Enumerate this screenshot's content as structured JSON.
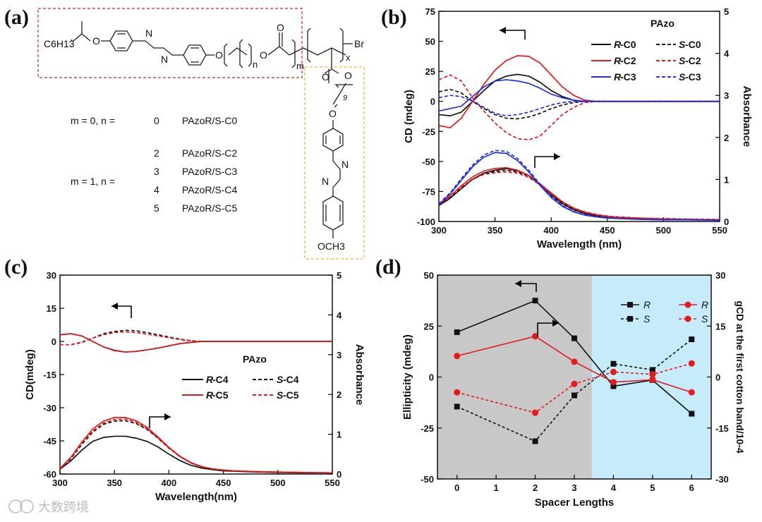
{
  "panels": {
    "a": {
      "label": "(a)",
      "chem": {
        "tail": "C6H13",
        "star": "*",
        "oxygen": "O",
        "azo_n": "N",
        "idx_n": "n",
        "idx_m": "m",
        "idx_x": "x",
        "idx_9": "9",
        "br": "Br",
        "och3": "OCH3"
      },
      "compounds": [
        {
          "group": "m = 0,   n =",
          "n": "0",
          "name": "PAzoR/S-C0"
        },
        {
          "group": "m = 1,   n =",
          "n": "2",
          "name": "PAzoR/S-C2"
        },
        {
          "group": "",
          "n": "3",
          "name": "PAzoR/S-C3"
        },
        {
          "group": "",
          "n": "4",
          "name": "PAzoR/S-C4"
        },
        {
          "group": "",
          "n": "5",
          "name": "PAzoR/S-C5"
        }
      ]
    },
    "b": {
      "label": "(b)"
    },
    "c": {
      "label": "(c)"
    },
    "d": {
      "label": "(d)"
    }
  },
  "watermark": "大数跨境",
  "chart_data": [
    {
      "id": "b",
      "type": "line",
      "title": "PAzo",
      "xlabel": "Wavelength (nm)",
      "ylabel": "CD (mdeg)",
      "y2label": "Absorbance",
      "xlim": [
        300,
        550
      ],
      "ylim": [
        -100,
        75
      ],
      "y2lim": [
        0,
        5
      ],
      "xticks": [
        300,
        350,
        400,
        450,
        500,
        550
      ],
      "yticks": [
        75,
        50,
        25,
        0,
        -25,
        -50,
        -75,
        -100
      ],
      "y2ticks": [
        5,
        4,
        3,
        2,
        1,
        0
      ],
      "x": [
        300,
        310,
        320,
        330,
        340,
        350,
        360,
        370,
        380,
        390,
        400,
        410,
        420,
        430,
        440,
        450,
        460,
        480,
        500,
        520,
        550
      ],
      "cd_series": [
        {
          "name": "R-C0",
          "color": "#111111",
          "dash": false,
          "values": [
            -11,
            -12,
            -9,
            0,
            9,
            17,
            21,
            22.5,
            21,
            16,
            9,
            4,
            1,
            0,
            0,
            0,
            0,
            0,
            0,
            0,
            0
          ]
        },
        {
          "name": "S-C0",
          "color": "#111111",
          "dash": true,
          "values": [
            8,
            10,
            7,
            0,
            -6,
            -11,
            -14,
            -14.5,
            -13,
            -10,
            -6,
            -3,
            -1,
            0,
            0,
            0,
            0,
            0,
            0,
            0,
            0
          ]
        },
        {
          "name": "R-C2",
          "color": "#e41a1c",
          "dash": false,
          "values": [
            -20,
            -22,
            -14,
            0,
            14,
            26,
            34,
            38,
            37.5,
            32,
            22,
            12,
            5,
            1,
            0,
            0,
            0,
            0,
            0,
            0,
            0
          ]
        },
        {
          "name": "S-C2",
          "color": "#e41a1c",
          "dash": true,
          "values": [
            18,
            22,
            17,
            3,
            -8,
            -18,
            -26,
            -31,
            -32,
            -29,
            -20,
            -11,
            -5,
            -1,
            0,
            0,
            0,
            0,
            0,
            0,
            0
          ]
        },
        {
          "name": "R-C3",
          "color": "#1f2fe0",
          "dash": false,
          "values": [
            -8,
            -6,
            -4,
            4,
            12,
            17,
            18,
            17,
            15,
            11,
            6,
            3,
            1,
            0,
            0,
            0,
            0,
            0,
            0,
            0,
            0
          ]
        },
        {
          "name": "S-C3",
          "color": "#1f2fe0",
          "dash": true,
          "values": [
            3,
            5,
            4,
            0,
            -5,
            -10,
            -12,
            -11,
            -9,
            -6,
            -3,
            -1,
            0,
            0,
            0,
            0,
            0,
            0,
            0,
            0,
            0
          ]
        }
      ],
      "abs_series": [
        {
          "name": "R-C0",
          "color": "#111111",
          "dash": false,
          "values": [
            0.38,
            0.55,
            0.78,
            1.0,
            1.15,
            1.22,
            1.26,
            1.21,
            1.1,
            0.88,
            0.63,
            0.42,
            0.28,
            0.19,
            0.13,
            0.1,
            0.08,
            0.06,
            0.05,
            0.04,
            0.04
          ]
        },
        {
          "name": "S-C0",
          "color": "#111111",
          "dash": true,
          "values": [
            0.4,
            0.58,
            0.8,
            1.01,
            1.14,
            1.19,
            1.22,
            1.18,
            1.08,
            0.88,
            0.64,
            0.44,
            0.3,
            0.21,
            0.15,
            0.11,
            0.09,
            0.07,
            0.06,
            0.05,
            0.04
          ]
        },
        {
          "name": "R-C2",
          "color": "#e41a1c",
          "dash": false,
          "values": [
            0.4,
            0.6,
            0.85,
            1.06,
            1.2,
            1.26,
            1.28,
            1.22,
            1.1,
            0.9,
            0.68,
            0.47,
            0.32,
            0.22,
            0.16,
            0.12,
            0.1,
            0.08,
            0.06,
            0.05,
            0.04
          ]
        },
        {
          "name": "S-C2",
          "color": "#e41a1c",
          "dash": true,
          "values": [
            0.42,
            0.6,
            0.82,
            1.0,
            1.12,
            1.16,
            1.18,
            1.15,
            1.05,
            0.87,
            0.66,
            0.46,
            0.32,
            0.23,
            0.17,
            0.13,
            0.11,
            0.08,
            0.07,
            0.06,
            0.05
          ]
        },
        {
          "name": "R-C3",
          "color": "#1f2fe0",
          "dash": false,
          "values": [
            0.4,
            0.65,
            0.98,
            1.3,
            1.53,
            1.64,
            1.62,
            1.45,
            1.18,
            0.86,
            0.57,
            0.36,
            0.23,
            0.15,
            0.11,
            0.08,
            0.07,
            0.05,
            0.04,
            0.04,
            0.03
          ]
        },
        {
          "name": "S-C3",
          "color": "#1f2fe0",
          "dash": true,
          "values": [
            0.42,
            0.68,
            1.02,
            1.34,
            1.58,
            1.69,
            1.67,
            1.5,
            1.22,
            0.89,
            0.6,
            0.38,
            0.24,
            0.16,
            0.12,
            0.09,
            0.07,
            0.05,
            0.04,
            0.04,
            0.03
          ]
        }
      ],
      "legend": {
        "position": "top-right",
        "entries": [
          {
            "prefix": "R",
            "suffix": "-C0",
            "color": "#111111",
            "dash": false
          },
          {
            "prefix": "S",
            "suffix": "-C0",
            "color": "#111111",
            "dash": true
          },
          {
            "prefix": "R",
            "suffix": "-C2",
            "color": "#e41a1c",
            "dash": false
          },
          {
            "prefix": "S",
            "suffix": "-C2",
            "color": "#e41a1c",
            "dash": true
          },
          {
            "prefix": "R",
            "suffix": "-C3",
            "color": "#1f2fe0",
            "dash": false
          },
          {
            "prefix": "S",
            "suffix": "-C3",
            "color": "#1f2fe0",
            "dash": true
          }
        ]
      }
    },
    {
      "id": "c",
      "type": "line",
      "title": "PAzo",
      "xlabel": "Wavelength(nm)",
      "ylabel": "CD(mdeg)",
      "y2label": "Absorbance",
      "xlim": [
        300,
        550
      ],
      "ylim": [
        -60,
        30
      ],
      "y2lim": [
        0,
        5
      ],
      "xticks": [
        300,
        350,
        400,
        450,
        500,
        550
      ],
      "yticks": [
        30,
        15,
        0,
        -15,
        -30,
        -45,
        -60
      ],
      "y2ticks": [
        5,
        4,
        3,
        2,
        1,
        0
      ],
      "x": [
        300,
        310,
        320,
        330,
        340,
        350,
        360,
        370,
        380,
        390,
        400,
        410,
        420,
        430,
        440,
        450,
        460,
        480,
        500,
        520,
        550
      ],
      "cd_series": [
        {
          "name": "R-C4",
          "color": "#111111",
          "dash": false,
          "values": [
            3,
            3.5,
            2.5,
            0,
            -2.5,
            -4,
            -4.8,
            -4.5,
            -3.8,
            -3,
            -2,
            -1,
            -0.5,
            0,
            0,
            0,
            0,
            0,
            0,
            0,
            0
          ]
        },
        {
          "name": "S-C4",
          "color": "#111111",
          "dash": true,
          "values": [
            -1.5,
            -1.5,
            -0.5,
            1.5,
            3.5,
            4.5,
            5,
            4.8,
            4,
            3,
            2,
            1,
            0.3,
            0,
            0,
            0,
            0,
            0,
            0,
            0,
            0
          ]
        },
        {
          "name": "R-C5",
          "color": "#e41a1c",
          "dash": false,
          "values": [
            3,
            3.5,
            2.5,
            0,
            -2.5,
            -4.2,
            -4.8,
            -4.5,
            -3.8,
            -3,
            -2,
            -1,
            -0.4,
            0,
            0,
            0,
            0,
            0,
            0,
            0,
            0
          ]
        },
        {
          "name": "S-C5",
          "color": "#e41a1c",
          "dash": true,
          "values": [
            -1.5,
            -1.5,
            -0.3,
            1.5,
            3,
            4,
            4.3,
            4,
            3.3,
            2.5,
            1.7,
            0.8,
            0.3,
            0,
            0,
            0,
            0,
            0,
            0,
            0,
            0
          ]
        }
      ],
      "abs_series": [
        {
          "name": "R-C4",
          "color": "#111111",
          "dash": false,
          "values": [
            0.12,
            0.33,
            0.6,
            0.82,
            0.92,
            0.95,
            0.95,
            0.9,
            0.82,
            0.68,
            0.5,
            0.34,
            0.22,
            0.15,
            0.11,
            0.08,
            0.07,
            0.05,
            0.04,
            0.03,
            0.03
          ]
        },
        {
          "name": "S-C4",
          "color": "#111111",
          "dash": true,
          "values": [
            0.13,
            0.38,
            0.74,
            1.05,
            1.25,
            1.33,
            1.34,
            1.27,
            1.12,
            0.9,
            0.65,
            0.44,
            0.28,
            0.18,
            0.13,
            0.1,
            0.08,
            0.06,
            0.05,
            0.04,
            0.03
          ]
        },
        {
          "name": "R-C5",
          "color": "#e41a1c",
          "dash": false,
          "values": [
            0.14,
            0.42,
            0.8,
            1.13,
            1.33,
            1.42,
            1.42,
            1.34,
            1.17,
            0.93,
            0.67,
            0.45,
            0.29,
            0.19,
            0.13,
            0.1,
            0.08,
            0.06,
            0.05,
            0.04,
            0.03
          ]
        },
        {
          "name": "S-C5",
          "color": "#e41a1c",
          "dash": true,
          "values": [
            0.13,
            0.4,
            0.77,
            1.08,
            1.28,
            1.37,
            1.38,
            1.3,
            1.14,
            0.91,
            0.66,
            0.44,
            0.28,
            0.18,
            0.13,
            0.1,
            0.08,
            0.06,
            0.05,
            0.04,
            0.03
          ]
        }
      ],
      "legend": {
        "position": "center-right",
        "entries": [
          {
            "prefix": "R",
            "suffix": "-C4",
            "color": "#111111",
            "dash": false
          },
          {
            "prefix": "S",
            "suffix": "-C4",
            "color": "#111111",
            "dash": true
          },
          {
            "prefix": "R",
            "suffix": "-C5",
            "color": "#e41a1c",
            "dash": false
          },
          {
            "prefix": "S",
            "suffix": "-C5",
            "color": "#e41a1c",
            "dash": true
          }
        ]
      }
    },
    {
      "id": "d",
      "type": "line",
      "xlabel": "Spacer Lengths",
      "ylabel": "Ellipticity (mdeg)",
      "y2label": "gCD at the first cotton band/10-4",
      "xlim": [
        -0.5,
        6.5
      ],
      "ylim": [
        -50,
        50
      ],
      "y2lim": [
        -30,
        30
      ],
      "xticks": [
        0,
        1,
        2,
        3,
        4,
        5,
        6
      ],
      "yticks": [
        50,
        25,
        0,
        -25,
        -50
      ],
      "y2ticks": [
        30,
        15,
        0,
        -15,
        -30
      ],
      "shading": [
        {
          "from": -0.5,
          "to": 3.45,
          "color": "#c8c8c8"
        },
        {
          "from": 3.45,
          "to": 6.5,
          "color": "#c6ecfb"
        }
      ],
      "x": [
        0,
        2,
        3,
        4,
        5,
        6
      ],
      "series": [
        {
          "name": "R",
          "axis": "left",
          "marker": "square",
          "color": "#111111",
          "dash": false,
          "values": [
            22,
            37.5,
            19,
            -4.5,
            -1.5,
            -18
          ]
        },
        {
          "name": "S",
          "axis": "left",
          "marker": "square",
          "color": "#111111",
          "dash": true,
          "values": [
            -14.5,
            -31.5,
            -9,
            6.5,
            3.5,
            18.5
          ]
        },
        {
          "name": "R",
          "axis": "right",
          "marker": "circle",
          "color": "#e41a1c",
          "dash": false,
          "values": [
            6.2,
            12,
            4.5,
            -1.5,
            -0.8,
            -4.5
          ]
        },
        {
          "name": "S",
          "axis": "right",
          "marker": "circle",
          "color": "#e41a1c",
          "dash": true,
          "values": [
            -4.5,
            -10.5,
            -2,
            1.5,
            0.8,
            4
          ]
        }
      ],
      "legend": {
        "position": "top-right"
      }
    }
  ]
}
